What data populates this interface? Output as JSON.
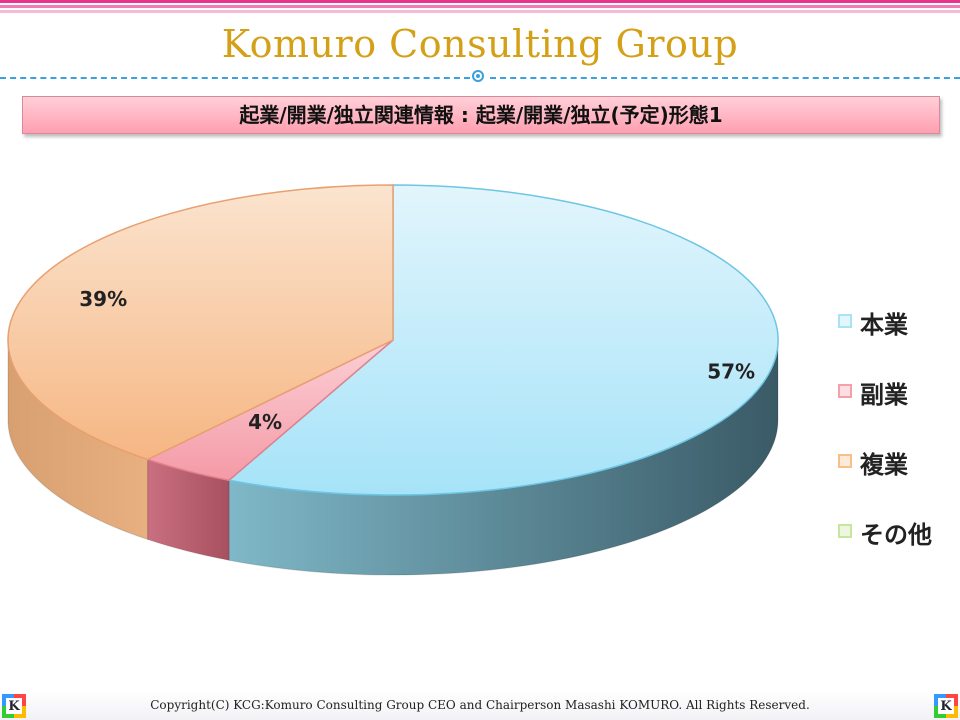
{
  "header": {
    "title": "Komuro Consulting Group",
    "subtitle": "起業/開業/独立関連情報 : 起業/開業/独立(予定)形態1",
    "stripe_colors": [
      "#e8348c",
      "#f07cb8",
      "#f8b8d8"
    ],
    "accent_color": "#3aa0e0",
    "title_color": "#d4a017"
  },
  "chart_data": {
    "type": "pie",
    "style": "3d",
    "categories": [
      "本業",
      "副業",
      "複業",
      "その他"
    ],
    "values": [
      57,
      4,
      39,
      0
    ],
    "labels": [
      "57%",
      "4%",
      "39%",
      ""
    ],
    "colors": [
      "#a8e4f7",
      "#f5a0a8",
      "#f8bf8a",
      "#c8e6a0"
    ],
    "legend_position": "right"
  },
  "footer": {
    "copyright": "Copyright(C) KCG:Komuro Consulting Group CEO and Chairperson Masashi KOMURO. All Rights Reserved.",
    "logo_letter": "K"
  }
}
